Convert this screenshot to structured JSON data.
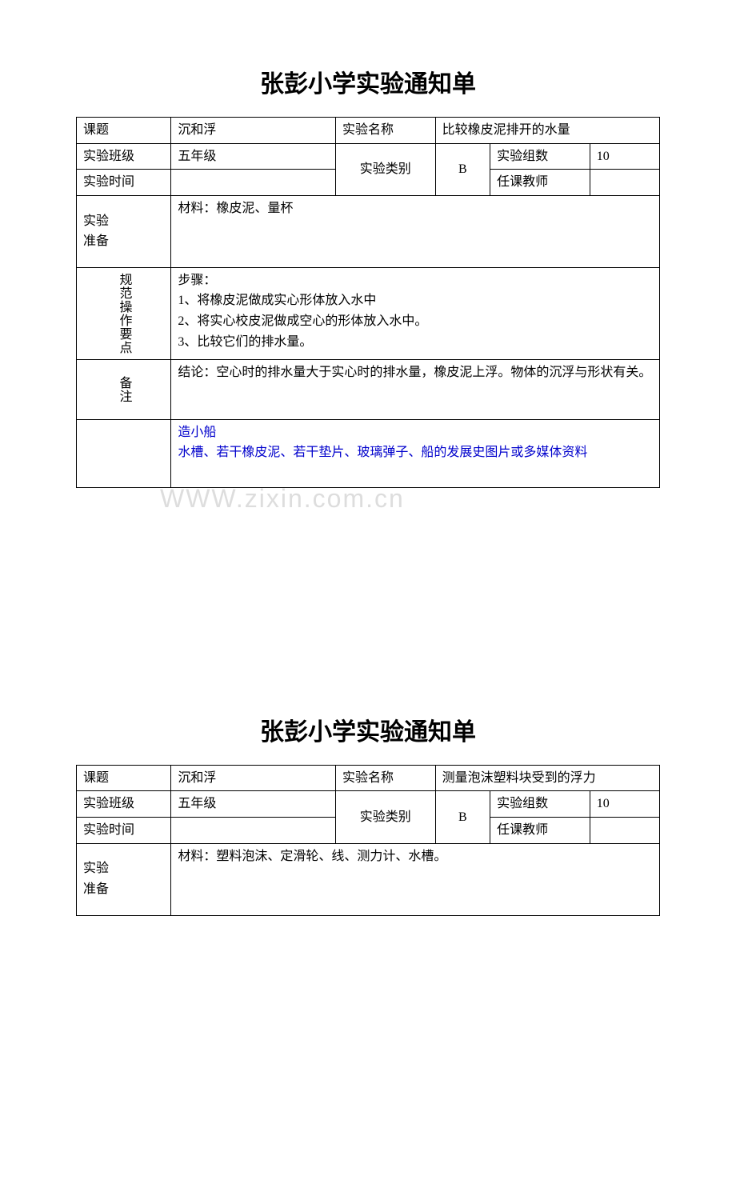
{
  "form1": {
    "title": "张彭小学实验通知单",
    "row1": {
      "label1": "课题",
      "value1": "沉和浮",
      "label2": "实验名称",
      "value2": "比较橡皮泥排开的水量"
    },
    "row2": {
      "label1": "实验班级",
      "value1": "五年级",
      "label2": "实验类别",
      "value2": "B",
      "label3": "实验组数",
      "value3": "10"
    },
    "row3": {
      "label1": "实验时间",
      "value1": "",
      "label2": "任课教师",
      "value2": ""
    },
    "prep": {
      "label": "实验\n准备",
      "content": "材料：橡皮泥、量杯"
    },
    "steps": {
      "label": "规范操作要点",
      "content": "步骤：\n1、将橡皮泥做成实心形体放入水中\n2、将实心校皮泥做成空心的形体放入水中。\n3、比较它们的排水量。"
    },
    "notes": {
      "label": "备注",
      "content": "结论：空心时的排水量大于实心时的排水量，橡皮泥上浮。物体的沉浮与形状有关。"
    },
    "extra": {
      "content": "造小船\n水槽、若干橡皮泥、若干垫片、玻璃弹子、船的发展史图片或多媒体资料"
    }
  },
  "form2": {
    "title": "张彭小学实验通知单",
    "row1": {
      "label1": "课题",
      "value1": "沉和浮",
      "label2": "实验名称",
      "value2": "测量泡沫塑料块受到的浮力"
    },
    "row2": {
      "label1": "实验班级",
      "value1": "五年级",
      "label2": "实验类别",
      "value2": "B",
      "label3": "实验组数",
      "value3": "10"
    },
    "row3": {
      "label1": "实验时间",
      "value1": "",
      "label2": "任课教师",
      "value2": ""
    },
    "prep": {
      "label": "实验\n准备",
      "content": "材料：塑料泡沫、定滑轮、线、测力计、水槽。"
    }
  },
  "watermark": "WWW.zixin.com.cn"
}
